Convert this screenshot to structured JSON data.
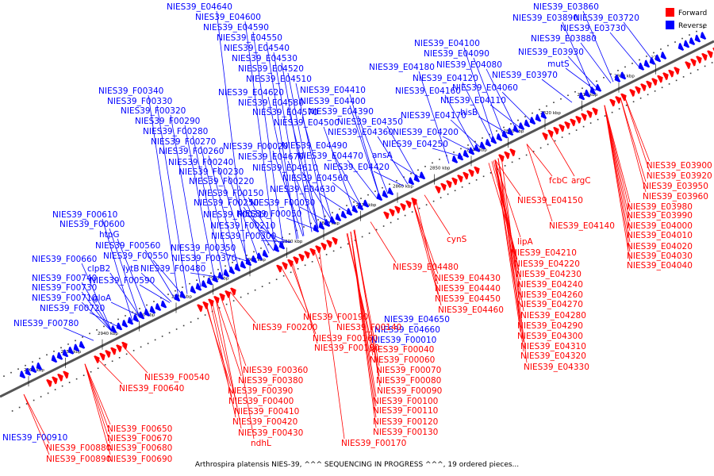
{
  "title": "Arthrospira platensis NIES-39, ^^^ SEQUENCING IN PROGRESS ^^^, 19 ordered pieces...",
  "legend": {
    "forward": "Forward",
    "reverse": "Reverse"
  },
  "colors": {
    "forward": "#ff0000",
    "reverse": "#0000ff",
    "axis": "#555555"
  },
  "ticks": [
    "2960 kbp",
    "2950 kbp",
    "2940 kbp",
    "2930 kbp",
    "2920 kbp",
    "2910 kbp",
    "2900 kbp",
    "2890 kbp",
    "2880 kbp",
    "2870 kbp",
    "2860 kbp",
    "2850 kbp",
    "2840 kbp",
    "2830 kbp",
    "2820 kbp",
    "2810 kbp",
    "2800 kbp",
    "27.."
  ],
  "reverse_labels": [
    "NIES39_E04640",
    "NIES39_E04600",
    "NIES39_E04590",
    "NIES39_E04550",
    "NIES39_E04540",
    "NIES39_E04530",
    "NIES39_E04520",
    "NIES39_E04510",
    "NIES39_E04620",
    "NIES39_E04410",
    "NIES39_E04580",
    "NIES39_E04400",
    "NIES39_E04570",
    "NIES39_E04390",
    "NIES39_E04500",
    "NIES39_E04350",
    "NIES39_E04360",
    "NIES39_E04490",
    "NIES39_F00020",
    "NIES39_E04670",
    "NIES39_E04470",
    "NIES39_E04610",
    "NIES39_E04420",
    "NIES39_E04560",
    "NIES39_E04630",
    "NIES39_F00340",
    "NIES39_F00330",
    "NIES39_F00320",
    "NIES39_F00290",
    "NIES39_F00280",
    "NIES39_F00270",
    "NIES39_F00260",
    "NIES39_F00240",
    "NIES39_F00230",
    "NIES39_F00220",
    "NIES39_F00150",
    "NIES39_F00030",
    "NIES39_F00250",
    "NIES39_F00050",
    "NIES39_F00310",
    "NIES39_F00210",
    "NIES39_F00300",
    "NIES39_F00350",
    "NIES39_F00370",
    "NIES39_F00480",
    "NIES39_F00610",
    "NIES39_F00600",
    "htpG",
    "NIES39_F00560",
    "NIES39_F00550",
    "clpB2",
    "lytB",
    "NIES39_F00590",
    "NIES39_F00660",
    "NIES39_F00740",
    "NIES39_F00730",
    "NIES39_F00710",
    "gloA",
    "NIES39_F00720",
    "NIES39_F00780",
    "NIES39_E03860",
    "NIES39_E03890",
    "NIES39_E03720",
    "NIES39_E03730",
    "NIES39_E03880",
    "NIES39_E03930",
    "mutS",
    "NIES39_E04100",
    "NIES39_E04090",
    "NIES39_E04180",
    "NIES39_E04080",
    "NIES39_E03970",
    "NIES39_E04120",
    "NIES39_E04060",
    "NIES39_E04160",
    "NIES39_E04110",
    "hisB",
    "NIES39_E04170",
    "NIES39_E04200",
    "NIES39_E04250",
    "ansA",
    "NIES39_E04650",
    "NIES39_E04660",
    "NIES39_F00010",
    "NIES39_F00910"
  ],
  "forward_labels": [
    "NIES39_E03900",
    "NIES39_E03920",
    "NIES39_E03950",
    "NIES39_E03960",
    "NIES39_E03980",
    "NIES39_E03990",
    "NIES39_E04000",
    "NIES39_E04010",
    "NIES39_E04020",
    "NIES39_E04030",
    "NIES39_E04040",
    "fcbC",
    "argC",
    "NIES39_E04150",
    "NIES39_E04140",
    "cynS",
    "lipA",
    "NIES39_E04210",
    "NIES39_E04220",
    "NIES39_E04230",
    "NIES39_E04240",
    "NIES39_E04260",
    "NIES39_E04270",
    "NIES39_E04280",
    "NIES39_E04290",
    "NIES39_E04300",
    "NIES39_E04310",
    "NIES39_E04320",
    "NIES39_E04330",
    "NIES39_E04480",
    "NIES39_E04430",
    "NIES39_E04440",
    "NIES39_E04450",
    "NIES39_E04460",
    "NIES39_F00200",
    "NIES39_F00190",
    "NIES39_F00140",
    "NIES39_F00160",
    "NIES39_F00180",
    "NIES39_F00040",
    "NIES39_F00060",
    "NIES39_F00070",
    "NIES39_F00080",
    "NIES39_F00090",
    "NIES39_F00100",
    "NIES39_F00110",
    "NIES39_F00120",
    "NIES39_F00130",
    "NIES39_F00170",
    "NIES39_F00360",
    "NIES39_F00380",
    "NIES39_F00390",
    "NIES39_F00400",
    "NIES39_F00410",
    "NIES39_F00420",
    "NIES39_F00430",
    "ndhL",
    "NIES39_F00540",
    "NIES39_F00640",
    "NIES39_F00650",
    "NIES39_F00670",
    "NIES39_F00680",
    "NIES39_F00690",
    "NIES39_F00880",
    "NIES39_F00890"
  ]
}
